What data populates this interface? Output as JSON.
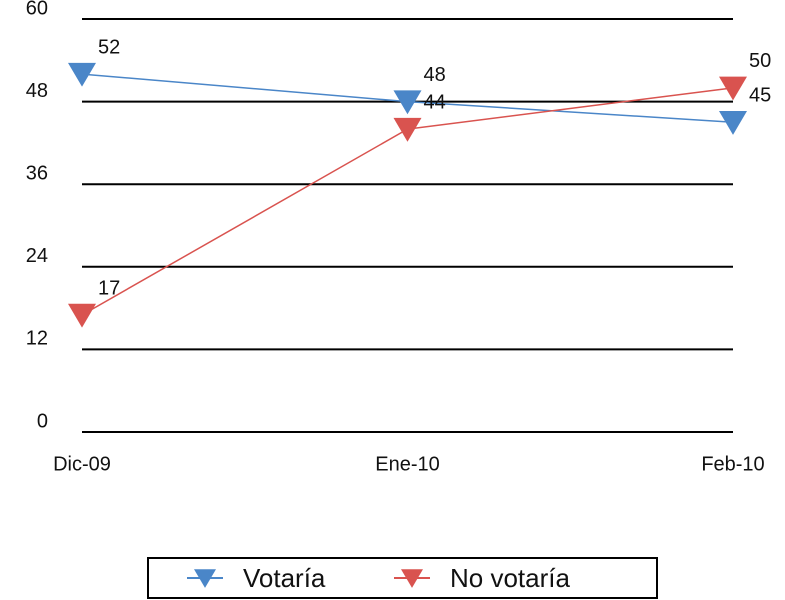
{
  "chart_data": {
    "type": "line",
    "categories": [
      "Dic-09",
      "Ene-10",
      "Feb-10"
    ],
    "series": [
      {
        "name": "Votaría",
        "color": "#4a86c8",
        "values": [
          52,
          48,
          45
        ]
      },
      {
        "name": "No votaría",
        "color": "#d9534f",
        "values": [
          17,
          44,
          50
        ]
      }
    ],
    "ylim": [
      0,
      60
    ],
    "yticks": [
      0,
      12,
      24,
      36,
      48,
      60
    ],
    "grid": true,
    "legend": "bottom"
  }
}
